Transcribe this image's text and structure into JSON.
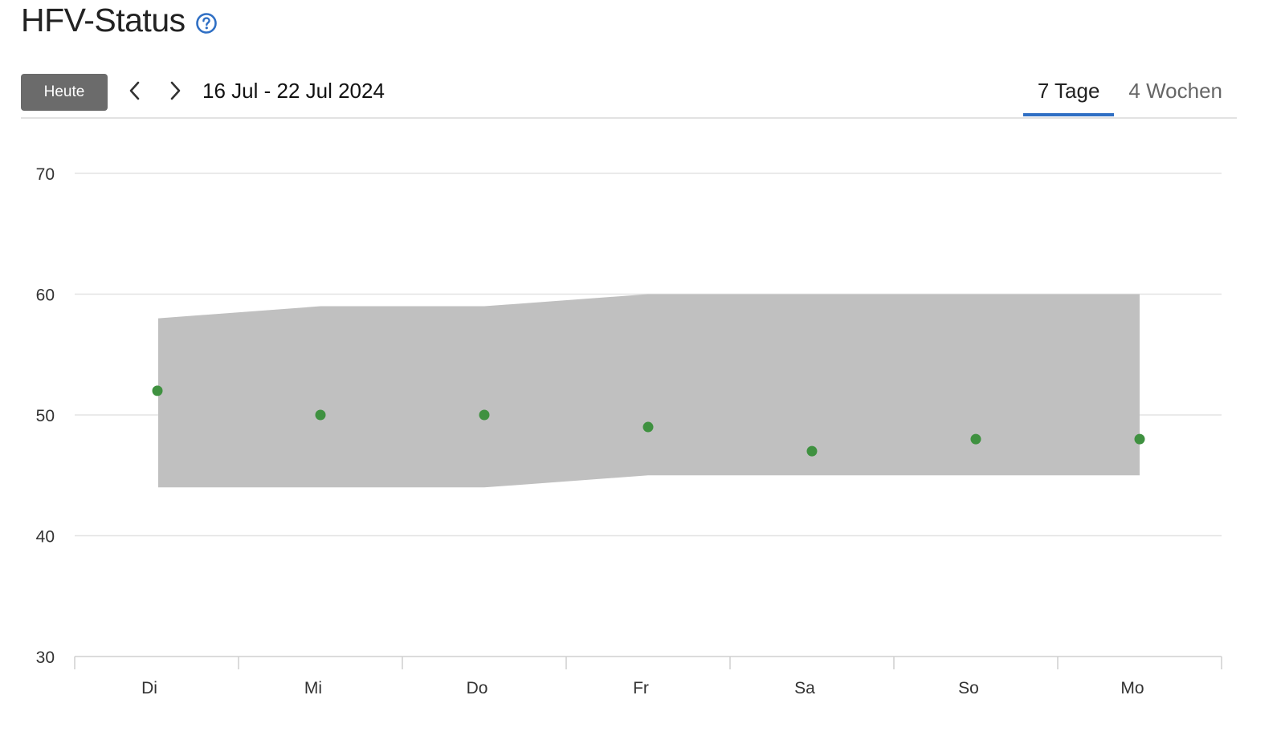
{
  "header": {
    "title": "HFV-Status",
    "help_icon": "question-circle-icon"
  },
  "toolbar": {
    "today_label": "Heute",
    "prev_icon": "chevron-left-icon",
    "next_icon": "chevron-right-icon",
    "date_range": "16 Jul - 22 Jul 2024",
    "tabs": [
      {
        "label": "7 Tage",
        "active": true
      },
      {
        "label": "4 Wochen",
        "active": false
      }
    ]
  },
  "colors": {
    "accent": "#2f6fc4",
    "point": "#3f9140",
    "band": "#c0c0c0",
    "button_bg": "#6b6b6b"
  },
  "chart_data": {
    "type": "scatter",
    "categories": [
      "Di",
      "Mi",
      "Do",
      "Fr",
      "Sa",
      "So",
      "Mo"
    ],
    "series": [
      {
        "values": [
          52,
          50,
          50,
          49,
          47,
          48,
          48
        ]
      }
    ],
    "band": {
      "upper": [
        58,
        59,
        59,
        60,
        60,
        60,
        60
      ],
      "lower": [
        44,
        44,
        44,
        45,
        45,
        45,
        45
      ]
    },
    "yticks": [
      30,
      40,
      50,
      60,
      70
    ],
    "ylim": [
      30,
      70
    ],
    "grid": true
  }
}
